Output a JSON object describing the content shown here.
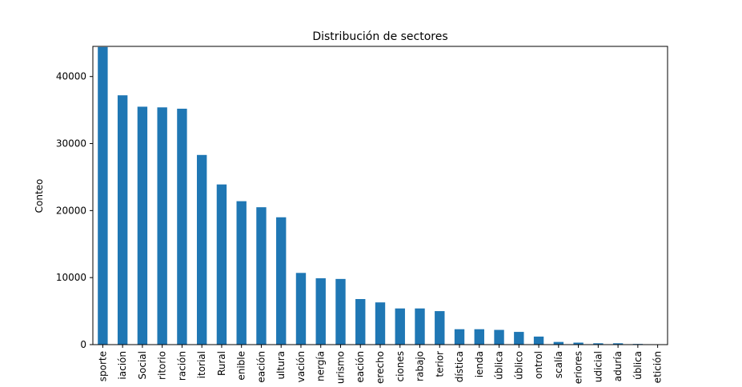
{
  "chart_data": {
    "type": "bar",
    "title": "Distribución de sectores",
    "xlabel": "",
    "ylabel": "Conteo",
    "ylim": [
      0,
      44500
    ],
    "yticks": [
      0,
      10000,
      20000,
      30000,
      40000
    ],
    "grid": false,
    "legend": "none",
    "bar_color": "#1f77b4",
    "categories": [
      "sporte",
      "iación",
      "Social",
      "ritorio",
      "ración",
      "itorial",
      "Rural",
      "enible",
      "eación",
      "ultura",
      "vación",
      "nergía",
      "urismo",
      "eación",
      "erecho",
      "ciones",
      "rabajo",
      "terior",
      "dística",
      "ienda",
      "ública",
      "úblico",
      "ontrol",
      "scalía",
      "eriores",
      "udicial",
      "aduría",
      "ública",
      "etición"
    ],
    "values": [
      44400,
      37200,
      35500,
      35400,
      35200,
      28300,
      23900,
      21400,
      20500,
      19000,
      10700,
      9900,
      9800,
      6800,
      6300,
      5400,
      5400,
      5000,
      2300,
      2300,
      2200,
      1900,
      1200,
      400,
      300,
      200,
      200,
      100,
      50
    ]
  }
}
